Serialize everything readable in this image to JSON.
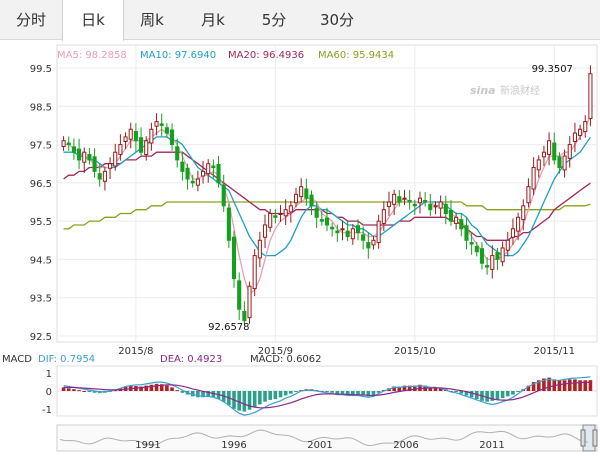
{
  "tabs": [
    {
      "label": "分时",
      "active": false
    },
    {
      "label": "日k",
      "active": true
    },
    {
      "label": "周k",
      "active": false
    },
    {
      "label": "月k",
      "active": false
    },
    {
      "label": "5分",
      "active": false
    },
    {
      "label": "30分",
      "active": false
    }
  ],
  "watermark": "新浪财经",
  "colors": {
    "up": "#9b1c1c",
    "down": "#14a01e",
    "ma5": "#e6a0b4",
    "ma10": "#1ea0c8",
    "ma20": "#a0285a",
    "ma60": "#8ca01e",
    "dif": "#3aa0d0",
    "dea": "#8c288c",
    "macd_up": "#b22222",
    "macd_down": "#2ca08c"
  },
  "legend": [
    {
      "key": "ma5",
      "text": "MA5: 98.2858"
    },
    {
      "key": "ma10",
      "text": "MA10: 97.6940"
    },
    {
      "key": "ma20",
      "text": "MA20: 96.4936"
    },
    {
      "key": "ma60",
      "text": "MA60: 95.9434"
    }
  ],
  "macd_legend": {
    "title": "MACD",
    "dif": "DIF: 0.7954",
    "dea": "DEA: 0.4923",
    "macd": "MACD: 0.6062"
  },
  "chart_data": {
    "type": "candlestick",
    "ylim": [
      92.5,
      99.5
    ],
    "y_ticks": [
      "99.5",
      "98.5",
      "97.5",
      "96.5",
      "95.5",
      "94.5",
      "93.5",
      "92.5"
    ],
    "x_ticks": [
      {
        "label": "2015/8",
        "index": 14
      },
      {
        "label": "2015/9",
        "index": 41
      },
      {
        "label": "2015/10",
        "index": 68
      },
      {
        "label": "2015/11",
        "index": 95
      }
    ],
    "annotations": [
      {
        "label": "99.3507",
        "index": 99
      },
      {
        "label": "92.6578",
        "index": 32
      }
    ],
    "macd_ticks": [
      "1",
      "0",
      "-1"
    ],
    "nav_years": [
      "1991",
      "1996",
      "2001",
      "2006",
      "2011"
    ],
    "closes": [
      97.6,
      97.5,
      97.3,
      97.1,
      97.3,
      97.1,
      96.8,
      96.6,
      96.8,
      97.0,
      97.3,
      97.5,
      97.7,
      97.9,
      97.6,
      97.3,
      97.6,
      97.9,
      98.1,
      98.0,
      97.8,
      97.5,
      97.1,
      96.8,
      96.6,
      96.5,
      96.6,
      96.8,
      97.0,
      96.9,
      96.5,
      95.9,
      95.0,
      94.0,
      93.2,
      92.9,
      93.8,
      94.6,
      95.0,
      95.4,
      95.7,
      95.6,
      95.7,
      95.8,
      95.9,
      96.2,
      96.4,
      96.1,
      95.9,
      95.6,
      95.5,
      95.4,
      95.3,
      95.2,
      95.3,
      95.1,
      95.3,
      95.2,
      95.0,
      94.8,
      95.0,
      95.5,
      95.8,
      96.0,
      96.2,
      96.0,
      96.1,
      96.0,
      95.9,
      96.1,
      96.0,
      95.8,
      95.9,
      96.0,
      95.7,
      95.5,
      95.6,
      95.3,
      95.0,
      94.9,
      94.7,
      94.4,
      94.3,
      94.6,
      94.5,
      94.8,
      95.0,
      95.3,
      95.6,
      95.9,
      96.4,
      96.9,
      97.1,
      97.3,
      97.6,
      97.1,
      96.9,
      97.2,
      97.5,
      97.8,
      97.9,
      98.1,
      99.35
    ],
    "ma5": [
      97.5,
      97.5,
      97.4,
      97.3,
      97.2,
      97.1,
      97.0,
      96.9,
      96.9,
      96.9,
      97.0,
      97.2,
      97.4,
      97.6,
      97.6,
      97.6,
      97.6,
      97.7,
      97.8,
      97.9,
      97.8,
      97.7,
      97.5,
      97.2,
      96.9,
      96.6,
      96.6,
      96.7,
      96.7,
      96.8,
      96.7,
      96.4,
      96.0,
      95.3,
      94.6,
      94.0,
      93.6,
      93.7,
      94.0,
      94.5,
      95.0,
      95.3,
      95.5,
      95.6,
      95.7,
      95.9,
      96.0,
      96.1,
      96.1,
      96.0,
      95.7,
      95.6,
      95.5,
      95.3,
      95.2,
      95.2,
      95.2,
      95.2,
      95.2,
      95.1,
      95.1,
      95.2,
      95.4,
      95.6,
      95.8,
      96.0,
      96.1,
      96.0,
      96.0,
      96.0,
      96.0,
      96.0,
      95.9,
      95.9,
      95.8,
      95.7,
      95.6,
      95.5,
      95.3,
      95.1,
      94.9,
      94.7,
      94.5,
      94.5,
      94.5,
      94.6,
      94.7,
      94.9,
      95.1,
      95.4,
      95.8,
      96.2,
      96.6,
      96.9,
      97.2,
      97.2,
      97.2,
      97.3,
      97.3,
      97.5,
      97.7,
      97.9,
      98.29
    ],
    "ma10": [
      97.3,
      97.3,
      97.3,
      97.2,
      97.2,
      97.1,
      97.1,
      97.0,
      96.9,
      96.9,
      96.9,
      97.0,
      97.1,
      97.2,
      97.3,
      97.4,
      97.5,
      97.6,
      97.7,
      97.7,
      97.7,
      97.6,
      97.6,
      97.5,
      97.3,
      97.1,
      96.9,
      96.8,
      96.7,
      96.6,
      96.5,
      96.4,
      96.3,
      96.0,
      95.7,
      95.4,
      95.1,
      94.9,
      94.7,
      94.6,
      94.6,
      94.6,
      94.7,
      94.8,
      95.0,
      95.3,
      95.6,
      95.8,
      95.9,
      95.9,
      95.8,
      95.8,
      95.7,
      95.6,
      95.5,
      95.4,
      95.4,
      95.3,
      95.3,
      95.2,
      95.1,
      95.1,
      95.2,
      95.3,
      95.4,
      95.5,
      95.6,
      95.7,
      95.8,
      95.9,
      96.0,
      96.0,
      96.0,
      96.0,
      95.9,
      95.8,
      95.7,
      95.7,
      95.6,
      95.4,
      95.3,
      95.1,
      94.9,
      94.8,
      94.7,
      94.6,
      94.6,
      94.6,
      94.7,
      94.9,
      95.1,
      95.4,
      95.7,
      96.0,
      96.3,
      96.6,
      96.8,
      97.0,
      97.1,
      97.2,
      97.3,
      97.5,
      97.69
    ],
    "ma20": [
      96.6,
      96.7,
      96.7,
      96.8,
      96.8,
      96.9,
      96.9,
      96.9,
      97.0,
      97.0,
      97.0,
      97.0,
      97.1,
      97.1,
      97.1,
      97.2,
      97.2,
      97.2,
      97.3,
      97.3,
      97.3,
      97.3,
      97.3,
      97.3,
      97.2,
      97.1,
      97.0,
      96.9,
      96.8,
      96.7,
      96.6,
      96.5,
      96.4,
      96.3,
      96.2,
      96.1,
      96.0,
      95.9,
      95.8,
      95.8,
      95.7,
      95.7,
      95.7,
      95.7,
      95.7,
      95.8,
      95.8,
      95.8,
      95.8,
      95.8,
      95.8,
      95.7,
      95.7,
      95.6,
      95.6,
      95.5,
      95.5,
      95.5,
      95.4,
      95.4,
      95.4,
      95.4,
      95.4,
      95.4,
      95.4,
      95.5,
      95.5,
      95.5,
      95.6,
      95.6,
      95.6,
      95.6,
      95.6,
      95.6,
      95.6,
      95.5,
      95.5,
      95.4,
      95.3,
      95.2,
      95.1,
      95.1,
      95.0,
      95.0,
      95.0,
      95.0,
      95.0,
      95.1,
      95.1,
      95.2,
      95.2,
      95.3,
      95.4,
      95.5,
      95.6,
      95.8,
      95.9,
      96.0,
      96.1,
      96.2,
      96.3,
      96.4,
      96.49
    ],
    "ma60": [
      95.3,
      95.3,
      95.4,
      95.4,
      95.4,
      95.5,
      95.5,
      95.5,
      95.6,
      95.6,
      95.6,
      95.7,
      95.7,
      95.7,
      95.8,
      95.8,
      95.8,
      95.9,
      95.9,
      95.9,
      96.0,
      96.0,
      96.0,
      96.0,
      96.0,
      96.0,
      96.0,
      96.0,
      96.0,
      96.0,
      96.0,
      96.0,
      96.0,
      96.0,
      96.0,
      96.0,
      96.0,
      96.0,
      96.0,
      96.0,
      96.0,
      96.0,
      96.0,
      96.0,
      96.0,
      96.0,
      96.0,
      96.0,
      96.0,
      96.0,
      96.0,
      96.0,
      96.0,
      96.0,
      96.0,
      96.0,
      96.0,
      96.0,
      96.0,
      96.0,
      96.0,
      96.0,
      96.0,
      96.0,
      96.0,
      96.0,
      96.0,
      96.0,
      96.0,
      96.0,
      96.0,
      96.0,
      96.0,
      96.0,
      96.0,
      96.0,
      96.0,
      96.0,
      95.9,
      95.9,
      95.9,
      95.9,
      95.8,
      95.8,
      95.8,
      95.8,
      95.8,
      95.8,
      95.8,
      95.8,
      95.8,
      95.8,
      95.8,
      95.8,
      95.8,
      95.8,
      95.8,
      95.9,
      95.9,
      95.9,
      95.9,
      95.9,
      95.94
    ],
    "macd": [
      0.2,
      0.15,
      0.1,
      0.05,
      0.0,
      -0.05,
      -0.1,
      -0.12,
      -0.1,
      -0.05,
      0.05,
      0.15,
      0.25,
      0.3,
      0.28,
      0.25,
      0.3,
      0.35,
      0.4,
      0.38,
      0.3,
      0.2,
      0.05,
      -0.1,
      -0.2,
      -0.3,
      -0.35,
      -0.35,
      -0.3,
      -0.35,
      -0.45,
      -0.6,
      -0.8,
      -1.0,
      -1.1,
      -1.15,
      -1.05,
      -0.9,
      -0.75,
      -0.6,
      -0.5,
      -0.45,
      -0.35,
      -0.25,
      -0.15,
      -0.05,
      0.05,
      0.1,
      0.1,
      0.05,
      0.0,
      -0.05,
      -0.1,
      -0.15,
      -0.15,
      -0.2,
      -0.2,
      -0.2,
      -0.25,
      -0.3,
      -0.25,
      -0.1,
      0.05,
      0.15,
      0.25,
      0.25,
      0.3,
      0.3,
      0.3,
      0.35,
      0.3,
      0.2,
      0.2,
      0.2,
      0.1,
      0.0,
      -0.05,
      -0.15,
      -0.25,
      -0.35,
      -0.45,
      -0.55,
      -0.6,
      -0.55,
      -0.5,
      -0.4,
      -0.3,
      -0.2,
      -0.05,
      0.1,
      0.3,
      0.5,
      0.6,
      0.7,
      0.75,
      0.65,
      0.6,
      0.6,
      0.65,
      0.65,
      0.6,
      0.6,
      0.61
    ],
    "dif": [
      0.3,
      0.25,
      0.2,
      0.15,
      0.1,
      0.05,
      0.0,
      -0.05,
      -0.05,
      0.0,
      0.05,
      0.15,
      0.25,
      0.3,
      0.35,
      0.35,
      0.4,
      0.45,
      0.5,
      0.5,
      0.45,
      0.35,
      0.2,
      0.05,
      -0.1,
      -0.2,
      -0.25,
      -0.3,
      -0.3,
      -0.35,
      -0.45,
      -0.6,
      -0.8,
      -1.05,
      -1.25,
      -1.35,
      -1.3,
      -1.2,
      -1.05,
      -0.9,
      -0.75,
      -0.65,
      -0.55,
      -0.4,
      -0.3,
      -0.15,
      0.0,
      0.05,
      0.05,
      0.0,
      -0.05,
      -0.1,
      -0.15,
      -0.2,
      -0.2,
      -0.25,
      -0.25,
      -0.25,
      -0.3,
      -0.35,
      -0.3,
      -0.15,
      0.0,
      0.1,
      0.2,
      0.2,
      0.25,
      0.25,
      0.25,
      0.3,
      0.25,
      0.2,
      0.2,
      0.15,
      0.05,
      -0.05,
      -0.1,
      -0.2,
      -0.3,
      -0.4,
      -0.5,
      -0.6,
      -0.7,
      -0.75,
      -0.7,
      -0.6,
      -0.5,
      -0.35,
      -0.15,
      0.05,
      0.25,
      0.4,
      0.5,
      0.6,
      0.65,
      0.6,
      0.6,
      0.65,
      0.7,
      0.72,
      0.74,
      0.76,
      0.7954
    ],
    "dea": [
      0.2,
      0.2,
      0.2,
      0.18,
      0.16,
      0.14,
      0.12,
      0.1,
      0.08,
      0.07,
      0.07,
      0.08,
      0.1,
      0.13,
      0.16,
      0.19,
      0.22,
      0.25,
      0.29,
      0.32,
      0.34,
      0.34,
      0.32,
      0.27,
      0.2,
      0.12,
      0.05,
      -0.02,
      -0.08,
      -0.14,
      -0.2,
      -0.28,
      -0.38,
      -0.5,
      -0.62,
      -0.74,
      -0.84,
      -0.9,
      -0.94,
      -0.94,
      -0.92,
      -0.88,
      -0.82,
      -0.74,
      -0.66,
      -0.56,
      -0.45,
      -0.35,
      -0.27,
      -0.2,
      -0.17,
      -0.16,
      -0.16,
      -0.17,
      -0.18,
      -0.19,
      -0.2,
      -0.21,
      -0.22,
      -0.24,
      -0.25,
      -0.23,
      -0.19,
      -0.14,
      -0.08,
      -0.03,
      0.02,
      0.06,
      0.1,
      0.14,
      0.16,
      0.17,
      0.18,
      0.17,
      0.15,
      0.11,
      0.07,
      0.02,
      -0.04,
      -0.11,
      -0.19,
      -0.27,
      -0.36,
      -0.44,
      -0.49,
      -0.51,
      -0.51,
      -0.48,
      -0.42,
      -0.33,
      -0.22,
      -0.1,
      0.02,
      0.13,
      0.23,
      0.3,
      0.36,
      0.4,
      0.43,
      0.45,
      0.47,
      0.48,
      0.4923
    ]
  }
}
